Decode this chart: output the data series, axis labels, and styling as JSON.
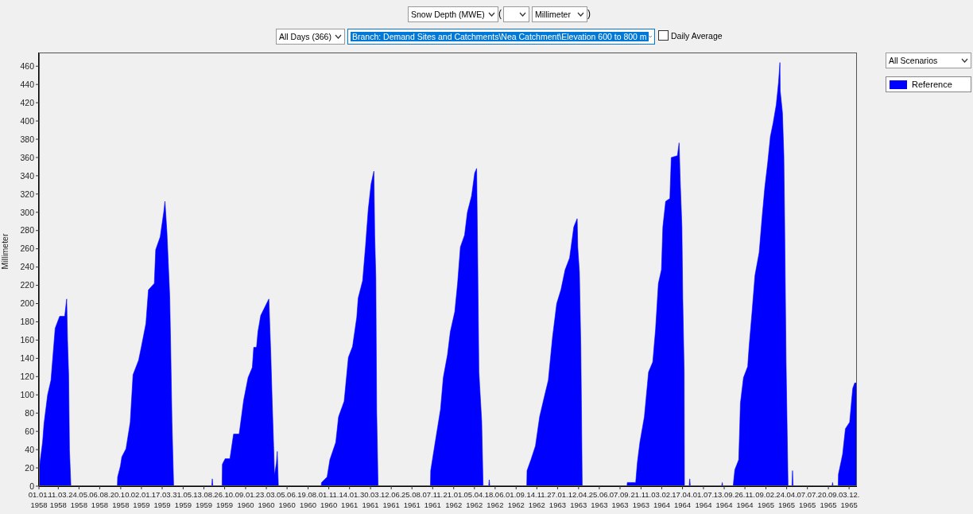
{
  "chart_data": {
    "type": "area",
    "ylabel": "Millimeter",
    "legend": "top right",
    "annotations": [
      "Snow Depth (MWE)",
      "(",
      ")",
      "Millimeter",
      "All Days (366)",
      "Branch: Demand Sites and Catchments\\Nea Catchment\\Elevation 600 to 800 m",
      "Daily Average",
      "All Scenarios"
    ],
    "xlim": [
      "1958-01-01",
      "1965-12-31"
    ],
    "xticks": [
      {
        "value": "1958-01-01",
        "label": "01.01.\n1958"
      },
      {
        "value": "1958-03-11",
        "label": "11.03.\n1958"
      },
      {
        "value": "1958-05-24",
        "label": "24.05.\n1958"
      },
      {
        "value": "1958-08-06",
        "label": "06.08.\n1958"
      },
      {
        "value": "1958-10-20",
        "label": "20.10.\n1958"
      },
      {
        "value": "1959-01-02",
        "label": "02.01.\n1959"
      },
      {
        "value": "1959-03-17",
        "label": "17.03.\n1959"
      },
      {
        "value": "1959-05-31",
        "label": "31.05.\n1959"
      },
      {
        "value": "1959-08-13",
        "label": "13.08.\n1959"
      },
      {
        "value": "1959-10-26",
        "label": "26.10.\n1959"
      },
      {
        "value": "1960-01-09",
        "label": "09.01.\n1960"
      },
      {
        "value": "1960-03-23",
        "label": "23.03.\n1960"
      },
      {
        "value": "1960-06-05",
        "label": "05.06.\n1960"
      },
      {
        "value": "1960-08-19",
        "label": "19.08.\n1960"
      },
      {
        "value": "1960-11-01",
        "label": "01.11.\n1960"
      },
      {
        "value": "1961-01-14",
        "label": "14.01.\n1961"
      },
      {
        "value": "1961-03-30",
        "label": "30.03.\n1961"
      },
      {
        "value": "1961-06-12",
        "label": "12.06.\n1961"
      },
      {
        "value": "1961-08-25",
        "label": "25.08.\n1961"
      },
      {
        "value": "1961-11-07",
        "label": "07.11.\n1961"
      },
      {
        "value": "1962-01-21",
        "label": "21.01.\n1962"
      },
      {
        "value": "1962-04-05",
        "label": "05.04.\n1962"
      },
      {
        "value": "1962-06-18",
        "label": "18.06.\n1962"
      },
      {
        "value": "1962-09-01",
        "label": "01.09.\n1962"
      },
      {
        "value": "1962-11-14",
        "label": "14.11.\n1962"
      },
      {
        "value": "1963-01-27",
        "label": "27.01.\n1963"
      },
      {
        "value": "1963-04-12",
        "label": "12.04.\n1963"
      },
      {
        "value": "1963-06-25",
        "label": "25.06.\n1963"
      },
      {
        "value": "1963-09-07",
        "label": "07.09.\n1963"
      },
      {
        "value": "1963-11-21",
        "label": "21.11.\n1963"
      },
      {
        "value": "1964-02-03",
        "label": "03.02.\n1964"
      },
      {
        "value": "1964-04-17",
        "label": "17.04.\n1964"
      },
      {
        "value": "1964-07-01",
        "label": "01.07.\n1964"
      },
      {
        "value": "1964-09-13",
        "label": "13.09.\n1964"
      },
      {
        "value": "1964-11-26",
        "label": "26.11.\n1964"
      },
      {
        "value": "1965-02-09",
        "label": "09.02.\n1965"
      },
      {
        "value": "1965-04-24",
        "label": "24.04.\n1965"
      },
      {
        "value": "1965-07-07",
        "label": "07.07.\n1965"
      },
      {
        "value": "1965-09-20",
        "label": "20.09.\n1965"
      },
      {
        "value": "1965-12-03",
        "label": "03.12.\n1965"
      }
    ],
    "ylim": [
      0,
      475
    ],
    "yticks": [
      0,
      20,
      40,
      60,
      80,
      100,
      120,
      140,
      160,
      180,
      200,
      220,
      240,
      260,
      280,
      300,
      320,
      340,
      360,
      380,
      400,
      420,
      440,
      460
    ],
    "x": [
      "1958-01-01",
      "1958-01-14",
      "1958-01-19",
      "1958-02-01",
      "1958-02-13",
      "1958-02-28",
      "1958-03-16",
      "1958-04-03",
      "1958-04-10",
      "1958-04-13",
      "1958-04-17",
      "1958-04-20",
      "1958-04-25",
      "1958-10-08",
      "1958-10-09",
      "1958-10-19",
      "1958-10-24",
      "1958-11-08",
      "1958-11-23",
      "1958-12-03",
      "1958-12-23",
      "1959-01-02",
      "1959-01-18",
      "1959-01-27",
      "1959-02-17",
      "1959-02-22",
      "1959-03-10",
      "1959-03-23",
      "1959-03-27",
      "1959-04-03",
      "1959-04-13",
      "1959-04-16",
      "1959-04-21",
      "1959-04-27",
      "1959-09-10",
      "1959-09-12",
      "1959-09-14",
      "1959-10-17",
      "1959-10-18",
      "1959-10-28",
      "1959-11-14",
      "1959-11-27",
      "1959-12-17",
      "1960-01-02",
      "1960-01-18",
      "1960-02-02",
      "1960-02-07",
      "1960-02-17",
      "1960-02-22",
      "1960-03-03",
      "1960-04-01",
      "1960-04-08",
      "1960-04-13",
      "1960-04-18",
      "1960-04-21",
      "1960-04-28",
      "1960-05-01",
      "1960-05-05",
      "1960-10-05",
      "1960-10-06",
      "1960-10-26",
      "1960-11-05",
      "1960-11-26",
      "1960-12-06",
      "1960-12-26",
      "1961-01-10",
      "1961-01-25",
      "1961-02-09",
      "1961-02-14",
      "1961-03-02",
      "1961-03-12",
      "1961-03-22",
      "1961-04-01",
      "1961-04-11",
      "1961-04-14",
      "1961-04-18",
      "1961-04-21",
      "1961-04-26",
      "1961-10-30",
      "1961-10-31",
      "1961-11-15",
      "1961-12-05",
      "1961-12-15",
      "1961-12-30",
      "1962-01-09",
      "1962-01-25",
      "1962-02-04",
      "1962-02-14",
      "1962-03-01",
      "1962-03-11",
      "1962-03-26",
      "1962-04-06",
      "1962-04-13",
      "1962-04-16",
      "1962-04-21",
      "1962-05-01",
      "1962-05-06",
      "1962-05-26",
      "1962-05-28",
      "1962-05-30",
      "1962-10-09",
      "1962-10-10",
      "1962-10-24",
      "1962-11-09",
      "1962-11-24",
      "1962-12-10",
      "1962-12-25",
      "1963-01-09",
      "1963-01-24",
      "1963-02-08",
      "1963-02-23",
      "1963-03-11",
      "1963-03-26",
      "1963-04-07",
      "1963-04-09",
      "1963-04-15",
      "1963-04-20",
      "1963-04-22",
      "1963-04-25",
      "1963-10-02",
      "1963-10-03",
      "1963-11-02",
      "1963-11-08",
      "1963-11-17",
      "1963-12-03",
      "1963-12-18",
      "1964-01-02",
      "1964-01-12",
      "1964-01-22",
      "1964-02-02",
      "1964-02-07",
      "1964-02-17",
      "1964-03-03",
      "1964-03-08",
      "1964-03-30",
      "1964-04-05",
      "1964-04-09",
      "1964-04-15",
      "1964-04-18",
      "1964-04-23",
      "1964-04-24",
      "1964-05-11",
      "1964-05-13",
      "1964-05-15",
      "1964-09-04",
      "1964-09-06",
      "1964-09-08",
      "1964-10-15",
      "1964-10-16",
      "1964-10-21",
      "1964-11-04",
      "1964-11-10",
      "1964-11-21",
      "1964-12-06",
      "1964-12-11",
      "1964-12-21",
      "1965-01-01",
      "1965-01-16",
      "1965-01-26",
      "1965-02-05",
      "1965-02-15",
      "1965-02-25",
      "1965-03-07",
      "1965-03-18",
      "1965-03-26",
      "1965-03-31",
      "1965-04-01",
      "1965-04-09",
      "1965-04-14",
      "1965-04-17",
      "1965-04-22",
      "1965-04-27",
      "1965-04-29",
      "1965-05-13",
      "1965-05-15",
      "1965-05-17",
      "1965-10-03",
      "1965-10-05",
      "1965-10-07",
      "1965-10-25",
      "1965-10-26",
      "1965-11-10",
      "1965-11-20",
      "1965-12-05",
      "1965-12-16",
      "1965-12-23",
      "1965-12-30"
    ],
    "series": [
      {
        "name": "Reference",
        "color": "#0000ff",
        "values": [
          17,
          48,
          68,
          100,
          116,
          173,
          186,
          186,
          205,
          160,
          122,
          40,
          0,
          0,
          10,
          22,
          32,
          41,
          70,
          122,
          138,
          153,
          178,
          215,
          222,
          259,
          273,
          301,
          312,
          278,
          208,
          160,
          70,
          0,
          0,
          8,
          0,
          0,
          24,
          30,
          30,
          57,
          57,
          94,
          119,
          130,
          152,
          152,
          169,
          187,
          205,
          144,
          91,
          44,
          12,
          25,
          38,
          0,
          0,
          4,
          10,
          29,
          48,
          76,
          93,
          141,
          153,
          185,
          206,
          225,
          262,
          303,
          331,
          345,
          275,
          228,
          82,
          0,
          0,
          17,
          46,
          84,
          119,
          144,
          169,
          191,
          222,
          262,
          275,
          300,
          318,
          343,
          348,
          268,
          125,
          71,
          0,
          0,
          7,
          0,
          0,
          17,
          29,
          44,
          76,
          97,
          116,
          163,
          200,
          215,
          237,
          250,
          284,
          293,
          262,
          234,
          153,
          94,
          0,
          0,
          4,
          4,
          26,
          48,
          76,
          125,
          136,
          172,
          222,
          237,
          284,
          312,
          315,
          360,
          362,
          376,
          334,
          284,
          206,
          125,
          0,
          0,
          8,
          0,
          0,
          4,
          0,
          0,
          3,
          18,
          29,
          91,
          119,
          131,
          153,
          189,
          231,
          256,
          293,
          327,
          353,
          383,
          398,
          418,
          442,
          464,
          433,
          409,
          362,
          284,
          135,
          38,
          0,
          0,
          17,
          0,
          0,
          4,
          0,
          0,
          13,
          35,
          63,
          70,
          107,
          113,
          113
        ]
      }
    ]
  }
}
